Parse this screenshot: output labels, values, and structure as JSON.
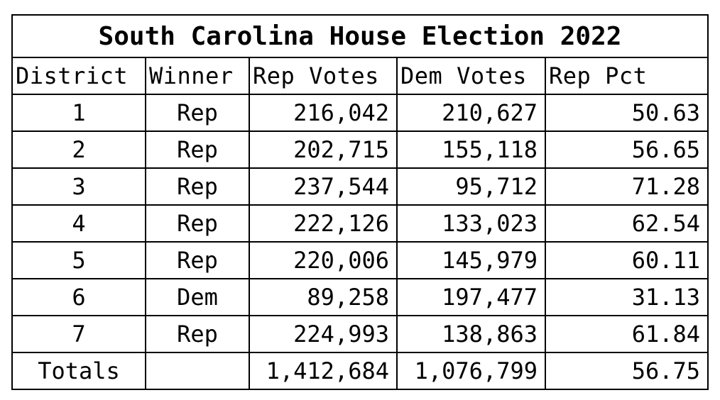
{
  "table": {
    "title": "South Carolina House Election 2022",
    "columns": [
      "District",
      "Winner",
      "Rep Votes",
      "Dem Votes",
      "Rep Pct"
    ],
    "rows": [
      {
        "district": "1",
        "winner": "Rep",
        "rep_votes": "216,042",
        "dem_votes": "210,627",
        "rep_pct": "50.63"
      },
      {
        "district": "2",
        "winner": "Rep",
        "rep_votes": "202,715",
        "dem_votes": "155,118",
        "rep_pct": "56.65"
      },
      {
        "district": "3",
        "winner": "Rep",
        "rep_votes": "237,544",
        "dem_votes": "95,712",
        "rep_pct": "71.28"
      },
      {
        "district": "4",
        "winner": "Rep",
        "rep_votes": "222,126",
        "dem_votes": "133,023",
        "rep_pct": "62.54"
      },
      {
        "district": "5",
        "winner": "Rep",
        "rep_votes": "220,006",
        "dem_votes": "145,979",
        "rep_pct": "60.11"
      },
      {
        "district": "6",
        "winner": "Dem",
        "rep_votes": "89,258",
        "dem_votes": "197,477",
        "rep_pct": "31.13"
      },
      {
        "district": "7",
        "winner": "Rep",
        "rep_votes": "224,993",
        "dem_votes": "138,863",
        "rep_pct": "61.84"
      }
    ],
    "totals": {
      "label": "Totals",
      "winner": "",
      "rep_votes": "1,412,684",
      "dem_votes": "1,076,799",
      "rep_pct": "56.75"
    }
  }
}
